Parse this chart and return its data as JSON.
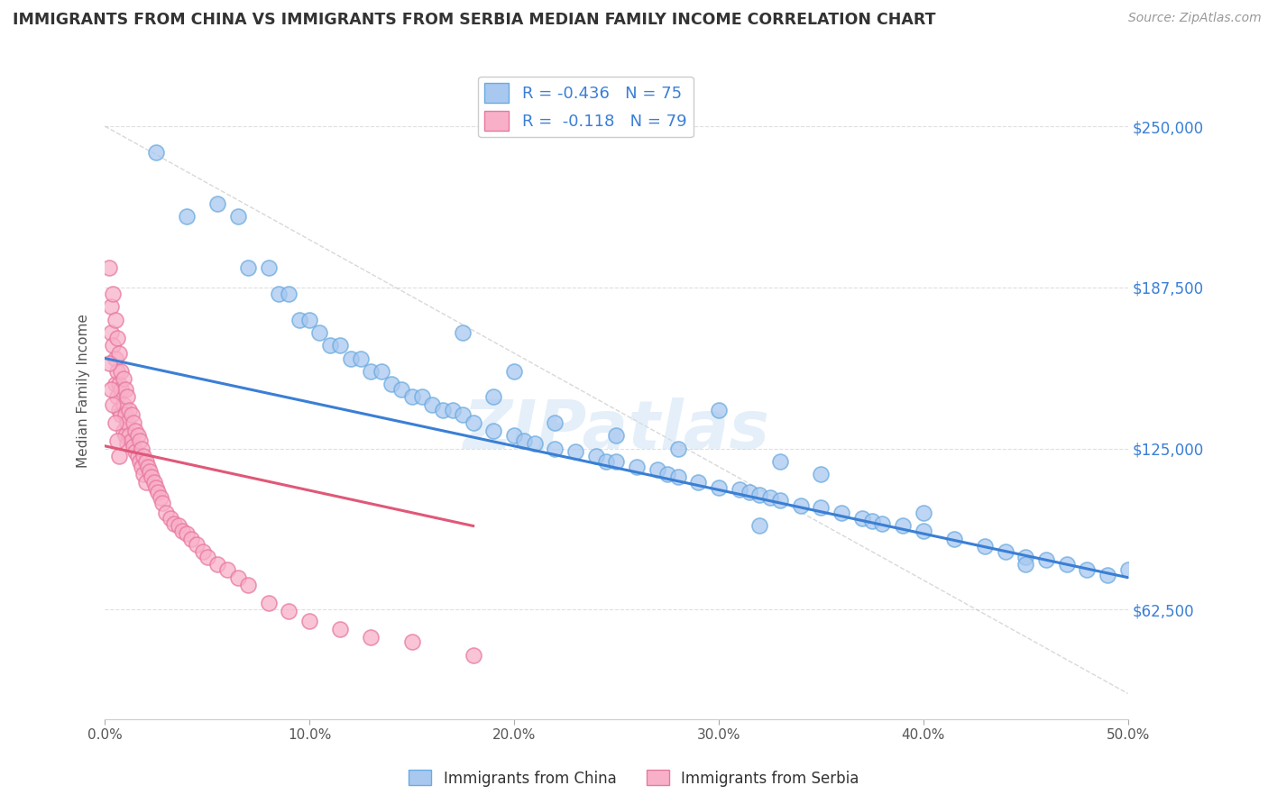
{
  "title": "IMMIGRANTS FROM CHINA VS IMMIGRANTS FROM SERBIA MEDIAN FAMILY INCOME CORRELATION CHART",
  "source": "Source: ZipAtlas.com",
  "ylabel": "Median Family Income",
  "xlim": [
    0.0,
    0.5
  ],
  "ylim": [
    20000,
    275000
  ],
  "y_ticks": [
    62500,
    125000,
    187500,
    250000
  ],
  "y_tick_labels": [
    "$62,500",
    "$125,000",
    "$187,500",
    "$250,000"
  ],
  "x_ticks": [
    0.0,
    0.1,
    0.2,
    0.3,
    0.4,
    0.5
  ],
  "x_tick_labels": [
    "0.0%",
    "10.0%",
    "20.0%",
    "30.0%",
    "40.0%",
    "50.0%"
  ],
  "china_R": -0.436,
  "china_N": 75,
  "serbia_R": -0.118,
  "serbia_N": 79,
  "china_color": "#a8c8f0",
  "china_edge_color": "#6aabe0",
  "serbia_color": "#f8b0c8",
  "serbia_edge_color": "#e878a0",
  "china_line_color": "#3a7fd5",
  "serbia_line_color": "#e05878",
  "background_color": "#ffffff",
  "grid_color": "#d8d8d8",
  "china_line_x0": 0.0,
  "china_line_x1": 0.5,
  "china_line_y0": 160000,
  "china_line_y1": 75000,
  "serbia_line_x0": 0.0,
  "serbia_line_x1": 0.18,
  "serbia_line_y0": 126000,
  "serbia_line_y1": 95000,
  "ref_line_x0": 0.0,
  "ref_line_x1": 0.5,
  "ref_line_y0": 250000,
  "ref_line_y1": 30000,
  "china_x": [
    0.025,
    0.04,
    0.055,
    0.065,
    0.07,
    0.08,
    0.085,
    0.09,
    0.095,
    0.1,
    0.105,
    0.11,
    0.115,
    0.12,
    0.125,
    0.13,
    0.135,
    0.14,
    0.145,
    0.15,
    0.155,
    0.16,
    0.165,
    0.17,
    0.175,
    0.18,
    0.19,
    0.2,
    0.205,
    0.21,
    0.22,
    0.23,
    0.24,
    0.245,
    0.25,
    0.26,
    0.27,
    0.275,
    0.28,
    0.29,
    0.3,
    0.31,
    0.315,
    0.32,
    0.325,
    0.33,
    0.34,
    0.35,
    0.36,
    0.37,
    0.375,
    0.38,
    0.39,
    0.4,
    0.415,
    0.43,
    0.44,
    0.45,
    0.46,
    0.47,
    0.48,
    0.49,
    0.3,
    0.2,
    0.25,
    0.175,
    0.33,
    0.4,
    0.35,
    0.28,
    0.22,
    0.45,
    0.32,
    0.19,
    0.5
  ],
  "china_y": [
    240000,
    215000,
    220000,
    215000,
    195000,
    195000,
    185000,
    185000,
    175000,
    175000,
    170000,
    165000,
    165000,
    160000,
    160000,
    155000,
    155000,
    150000,
    148000,
    145000,
    145000,
    142000,
    140000,
    140000,
    138000,
    135000,
    132000,
    130000,
    128000,
    127000,
    125000,
    124000,
    122000,
    120000,
    120000,
    118000,
    117000,
    115000,
    114000,
    112000,
    110000,
    109000,
    108000,
    107000,
    106000,
    105000,
    103000,
    102000,
    100000,
    98000,
    97000,
    96000,
    95000,
    93000,
    90000,
    87000,
    85000,
    83000,
    82000,
    80000,
    78000,
    76000,
    140000,
    155000,
    130000,
    170000,
    120000,
    100000,
    115000,
    125000,
    135000,
    80000,
    95000,
    145000,
    78000
  ],
  "serbia_x": [
    0.002,
    0.003,
    0.003,
    0.004,
    0.004,
    0.005,
    0.005,
    0.005,
    0.006,
    0.006,
    0.006,
    0.007,
    0.007,
    0.007,
    0.008,
    0.008,
    0.008,
    0.009,
    0.009,
    0.009,
    0.01,
    0.01,
    0.01,
    0.011,
    0.011,
    0.011,
    0.012,
    0.012,
    0.013,
    0.013,
    0.014,
    0.014,
    0.015,
    0.015,
    0.016,
    0.016,
    0.017,
    0.017,
    0.018,
    0.018,
    0.019,
    0.019,
    0.02,
    0.02,
    0.021,
    0.022,
    0.023,
    0.024,
    0.025,
    0.026,
    0.027,
    0.028,
    0.03,
    0.032,
    0.034,
    0.036,
    0.038,
    0.04,
    0.042,
    0.045,
    0.048,
    0.05,
    0.055,
    0.06,
    0.065,
    0.07,
    0.08,
    0.09,
    0.1,
    0.115,
    0.13,
    0.15,
    0.18,
    0.002,
    0.003,
    0.004,
    0.005,
    0.006,
    0.007
  ],
  "serbia_y": [
    195000,
    180000,
    170000,
    185000,
    165000,
    175000,
    160000,
    150000,
    168000,
    155000,
    145000,
    162000,
    150000,
    140000,
    155000,
    148000,
    138000,
    152000,
    142000,
    132000,
    148000,
    138000,
    130000,
    145000,
    135000,
    127000,
    140000,
    130000,
    138000,
    128000,
    135000,
    126000,
    132000,
    124000,
    130000,
    122000,
    128000,
    120000,
    125000,
    118000,
    122000,
    115000,
    120000,
    112000,
    118000,
    116000,
    114000,
    112000,
    110000,
    108000,
    106000,
    104000,
    100000,
    98000,
    96000,
    95000,
    93000,
    92000,
    90000,
    88000,
    85000,
    83000,
    80000,
    78000,
    75000,
    72000,
    65000,
    62000,
    58000,
    55000,
    52000,
    50000,
    45000,
    158000,
    148000,
    142000,
    135000,
    128000,
    122000
  ]
}
